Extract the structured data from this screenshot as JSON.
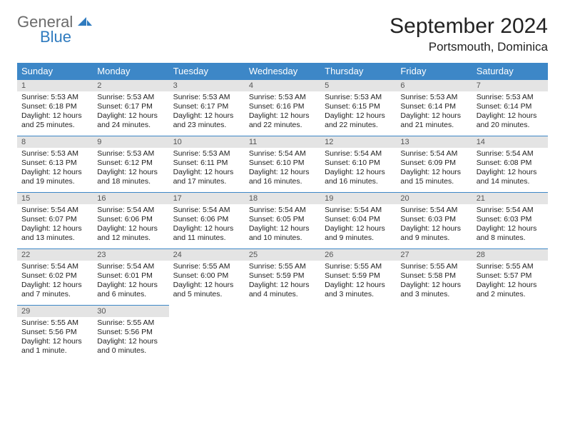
{
  "logo": {
    "general": "General",
    "blue": "Blue"
  },
  "title": "September 2024",
  "location": "Portsmouth, Dominica",
  "colors": {
    "header_bg": "#3d87c7",
    "header_text": "#ffffff",
    "daynum_bg": "#e4e4e4",
    "daynum_text": "#555555",
    "rule": "#3d87c7",
    "logo_gray": "#6b6b6b",
    "logo_blue": "#2f7bbf"
  },
  "weekdays": [
    "Sunday",
    "Monday",
    "Tuesday",
    "Wednesday",
    "Thursday",
    "Friday",
    "Saturday"
  ],
  "weeks": [
    [
      {
        "n": "1",
        "sr": "Sunrise: 5:53 AM",
        "ss": "Sunset: 6:18 PM",
        "d1": "Daylight: 12 hours",
        "d2": "and 25 minutes."
      },
      {
        "n": "2",
        "sr": "Sunrise: 5:53 AM",
        "ss": "Sunset: 6:17 PM",
        "d1": "Daylight: 12 hours",
        "d2": "and 24 minutes."
      },
      {
        "n": "3",
        "sr": "Sunrise: 5:53 AM",
        "ss": "Sunset: 6:17 PM",
        "d1": "Daylight: 12 hours",
        "d2": "and 23 minutes."
      },
      {
        "n": "4",
        "sr": "Sunrise: 5:53 AM",
        "ss": "Sunset: 6:16 PM",
        "d1": "Daylight: 12 hours",
        "d2": "and 22 minutes."
      },
      {
        "n": "5",
        "sr": "Sunrise: 5:53 AM",
        "ss": "Sunset: 6:15 PM",
        "d1": "Daylight: 12 hours",
        "d2": "and 22 minutes."
      },
      {
        "n": "6",
        "sr": "Sunrise: 5:53 AM",
        "ss": "Sunset: 6:14 PM",
        "d1": "Daylight: 12 hours",
        "d2": "and 21 minutes."
      },
      {
        "n": "7",
        "sr": "Sunrise: 5:53 AM",
        "ss": "Sunset: 6:14 PM",
        "d1": "Daylight: 12 hours",
        "d2": "and 20 minutes."
      }
    ],
    [
      {
        "n": "8",
        "sr": "Sunrise: 5:53 AM",
        "ss": "Sunset: 6:13 PM",
        "d1": "Daylight: 12 hours",
        "d2": "and 19 minutes."
      },
      {
        "n": "9",
        "sr": "Sunrise: 5:53 AM",
        "ss": "Sunset: 6:12 PM",
        "d1": "Daylight: 12 hours",
        "d2": "and 18 minutes."
      },
      {
        "n": "10",
        "sr": "Sunrise: 5:53 AM",
        "ss": "Sunset: 6:11 PM",
        "d1": "Daylight: 12 hours",
        "d2": "and 17 minutes."
      },
      {
        "n": "11",
        "sr": "Sunrise: 5:54 AM",
        "ss": "Sunset: 6:10 PM",
        "d1": "Daylight: 12 hours",
        "d2": "and 16 minutes."
      },
      {
        "n": "12",
        "sr": "Sunrise: 5:54 AM",
        "ss": "Sunset: 6:10 PM",
        "d1": "Daylight: 12 hours",
        "d2": "and 16 minutes."
      },
      {
        "n": "13",
        "sr": "Sunrise: 5:54 AM",
        "ss": "Sunset: 6:09 PM",
        "d1": "Daylight: 12 hours",
        "d2": "and 15 minutes."
      },
      {
        "n": "14",
        "sr": "Sunrise: 5:54 AM",
        "ss": "Sunset: 6:08 PM",
        "d1": "Daylight: 12 hours",
        "d2": "and 14 minutes."
      }
    ],
    [
      {
        "n": "15",
        "sr": "Sunrise: 5:54 AM",
        "ss": "Sunset: 6:07 PM",
        "d1": "Daylight: 12 hours",
        "d2": "and 13 minutes."
      },
      {
        "n": "16",
        "sr": "Sunrise: 5:54 AM",
        "ss": "Sunset: 6:06 PM",
        "d1": "Daylight: 12 hours",
        "d2": "and 12 minutes."
      },
      {
        "n": "17",
        "sr": "Sunrise: 5:54 AM",
        "ss": "Sunset: 6:06 PM",
        "d1": "Daylight: 12 hours",
        "d2": "and 11 minutes."
      },
      {
        "n": "18",
        "sr": "Sunrise: 5:54 AM",
        "ss": "Sunset: 6:05 PM",
        "d1": "Daylight: 12 hours",
        "d2": "and 10 minutes."
      },
      {
        "n": "19",
        "sr": "Sunrise: 5:54 AM",
        "ss": "Sunset: 6:04 PM",
        "d1": "Daylight: 12 hours",
        "d2": "and 9 minutes."
      },
      {
        "n": "20",
        "sr": "Sunrise: 5:54 AM",
        "ss": "Sunset: 6:03 PM",
        "d1": "Daylight: 12 hours",
        "d2": "and 9 minutes."
      },
      {
        "n": "21",
        "sr": "Sunrise: 5:54 AM",
        "ss": "Sunset: 6:03 PM",
        "d1": "Daylight: 12 hours",
        "d2": "and 8 minutes."
      }
    ],
    [
      {
        "n": "22",
        "sr": "Sunrise: 5:54 AM",
        "ss": "Sunset: 6:02 PM",
        "d1": "Daylight: 12 hours",
        "d2": "and 7 minutes."
      },
      {
        "n": "23",
        "sr": "Sunrise: 5:54 AM",
        "ss": "Sunset: 6:01 PM",
        "d1": "Daylight: 12 hours",
        "d2": "and 6 minutes."
      },
      {
        "n": "24",
        "sr": "Sunrise: 5:55 AM",
        "ss": "Sunset: 6:00 PM",
        "d1": "Daylight: 12 hours",
        "d2": "and 5 minutes."
      },
      {
        "n": "25",
        "sr": "Sunrise: 5:55 AM",
        "ss": "Sunset: 5:59 PM",
        "d1": "Daylight: 12 hours",
        "d2": "and 4 minutes."
      },
      {
        "n": "26",
        "sr": "Sunrise: 5:55 AM",
        "ss": "Sunset: 5:59 PM",
        "d1": "Daylight: 12 hours",
        "d2": "and 3 minutes."
      },
      {
        "n": "27",
        "sr": "Sunrise: 5:55 AM",
        "ss": "Sunset: 5:58 PM",
        "d1": "Daylight: 12 hours",
        "d2": "and 3 minutes."
      },
      {
        "n": "28",
        "sr": "Sunrise: 5:55 AM",
        "ss": "Sunset: 5:57 PM",
        "d1": "Daylight: 12 hours",
        "d2": "and 2 minutes."
      }
    ],
    [
      {
        "n": "29",
        "sr": "Sunrise: 5:55 AM",
        "ss": "Sunset: 5:56 PM",
        "d1": "Daylight: 12 hours",
        "d2": "and 1 minute."
      },
      {
        "n": "30",
        "sr": "Sunrise: 5:55 AM",
        "ss": "Sunset: 5:56 PM",
        "d1": "Daylight: 12 hours",
        "d2": "and 0 minutes."
      },
      {
        "empty": true
      },
      {
        "empty": true
      },
      {
        "empty": true
      },
      {
        "empty": true
      },
      {
        "empty": true
      }
    ]
  ]
}
